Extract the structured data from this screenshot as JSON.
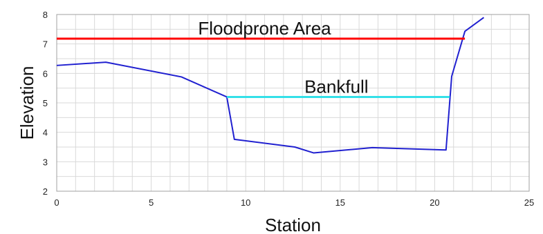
{
  "chart_data": {
    "type": "line",
    "title": "",
    "xlabel": "Station",
    "ylabel": "Elevation",
    "xlim": [
      0,
      25
    ],
    "ylim": [
      2,
      8
    ],
    "xticks": [
      0,
      5,
      10,
      15,
      20,
      25
    ],
    "yticks": [
      2,
      3,
      4,
      5,
      6,
      7,
      8
    ],
    "x_grid_step": 1,
    "y_grid_step": 0.5,
    "grid": true,
    "series": [
      {
        "color": "#2020d0",
        "points": [
          [
            0,
            6.27
          ],
          [
            2.6,
            6.38
          ],
          [
            6.6,
            5.88
          ],
          [
            9.0,
            5.2
          ],
          [
            9.4,
            3.76
          ],
          [
            12.6,
            3.5
          ],
          [
            13.6,
            3.3
          ],
          [
            16.7,
            3.48
          ],
          [
            20.6,
            3.4
          ],
          [
            20.9,
            5.9
          ],
          [
            21.6,
            7.43
          ],
          [
            22.6,
            7.9
          ]
        ]
      },
      {
        "color": "#ff0000",
        "points": [
          [
            0,
            7.18
          ],
          [
            21.6,
            7.18
          ]
        ]
      },
      {
        "color": "#33e0e8",
        "points": [
          [
            9.0,
            5.2
          ],
          [
            20.8,
            5.2
          ]
        ]
      }
    ],
    "annotations": [
      {
        "text": "Floodprone Area",
        "x": 11.0,
        "y": 7.18
      },
      {
        "text": "Bankfull",
        "x": 14.8,
        "y": 5.2
      }
    ]
  }
}
